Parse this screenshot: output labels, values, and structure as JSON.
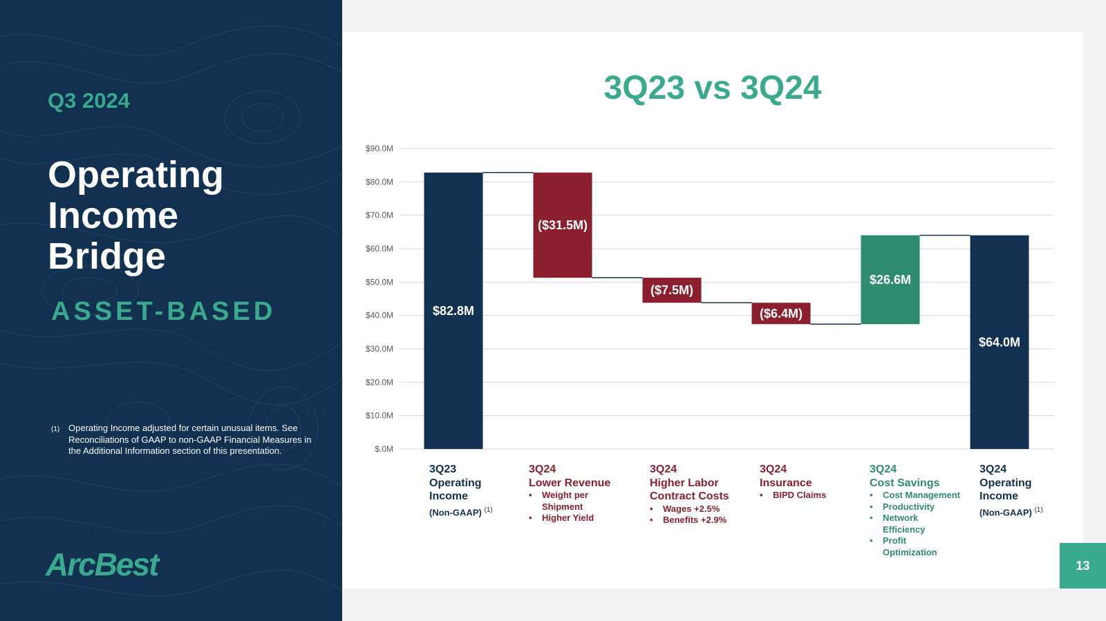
{
  "slide": {
    "quarter": "Q3 2024",
    "title_lines": [
      "Operating",
      "Income",
      "Bridge"
    ],
    "segment": "ASSET-BASED",
    "footnote_mark": "(1)",
    "footnote": "Operating Income adjusted for certain unusual items. See Reconciliations of GAAP to non-GAAP Financial Measures in the Additional Information section of this presentation.",
    "logo_text": "ArcBest",
    "page_number": "13"
  },
  "colors": {
    "navy": "#12304f",
    "red": "#8b1f2d",
    "green": "#2e8b70",
    "accent": "#3aaa8e",
    "grid": "#d9d9d9",
    "axis_text": "#595959"
  },
  "chart_data": {
    "type": "waterfall",
    "title": "3Q23 vs 3Q24",
    "ylim": [
      0,
      90
    ],
    "yticks": [
      0,
      10,
      20,
      30,
      40,
      50,
      60,
      70,
      80,
      90
    ],
    "ytick_labels": [
      "$.0M",
      "$10.0M",
      "$20.0M",
      "$30.0M",
      "$40.0M",
      "$50.0M",
      "$60.0M",
      "$70.0M",
      "$80.0M",
      "$90.0M"
    ],
    "grid": true,
    "bars": [
      {
        "label": "3Q23 Operating Income (Non-GAAP)",
        "kind": "total",
        "value": 82.8,
        "data_label": "$82.8M"
      },
      {
        "label": "3Q24 Lower Revenue",
        "kind": "decrease",
        "value": -31.5,
        "data_label": "($31.5M)"
      },
      {
        "label": "3Q24 Higher Labor Contract Costs",
        "kind": "decrease",
        "value": -7.5,
        "data_label": "($7.5M)"
      },
      {
        "label": "3Q24 Insurance",
        "kind": "decrease",
        "value": -6.4,
        "data_label": "($6.4M)"
      },
      {
        "label": "3Q24 Cost Savings",
        "kind": "increase",
        "value": 26.6,
        "data_label": "$26.6M"
      },
      {
        "label": "3Q24 Operating Income (Non-GAAP)",
        "kind": "total",
        "value": 64.0,
        "data_label": "$64.0M"
      }
    ]
  },
  "categories": [
    {
      "q": "3Q23",
      "name": [
        "Operating",
        "Income"
      ],
      "note": "(Non-GAAP)",
      "sup": "(1)",
      "bullets": []
    },
    {
      "q": "3Q24",
      "name": [
        "Lower Revenue"
      ],
      "note": "",
      "sup": "",
      "bullets": [
        "Weight per Shipment",
        "Higher Yield"
      ]
    },
    {
      "q": "3Q24",
      "name": [
        "Higher Labor",
        "Contract Costs"
      ],
      "note": "",
      "sup": "",
      "bullets": [
        "Wages +2.5%",
        "Benefits +2.9%"
      ]
    },
    {
      "q": "3Q24",
      "name": [
        "Insurance"
      ],
      "note": "",
      "sup": "",
      "bullets": [
        "BIPD Claims"
      ]
    },
    {
      "q": "3Q24",
      "name": [
        "Cost Savings"
      ],
      "note": "",
      "sup": "",
      "bullets": [
        "Cost Management",
        "Productivity",
        "Network Efficiency",
        "Profit Optimization"
      ]
    },
    {
      "q": "3Q24",
      "name": [
        "Operating",
        "Income"
      ],
      "note": "(Non-GAAP)",
      "sup": "(1)",
      "bullets": []
    }
  ]
}
